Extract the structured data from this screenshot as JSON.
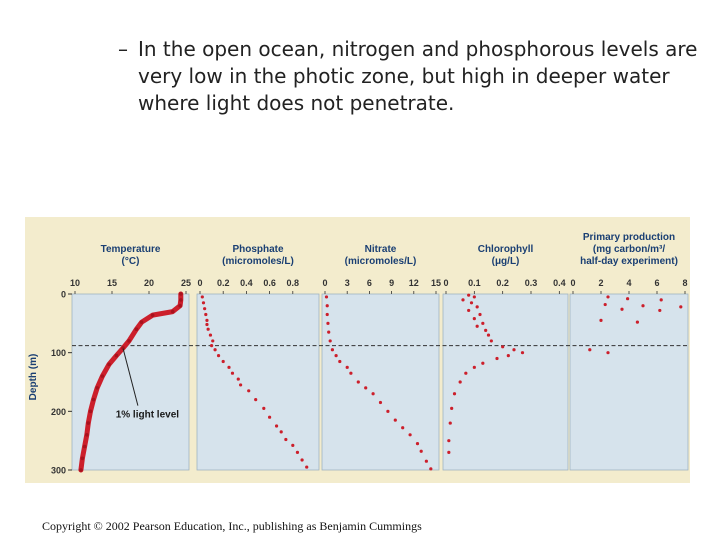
{
  "bullet": {
    "dash": "–",
    "text": "In the open ocean, nitrogen and phosphorous levels are very low in the photic zone, but high in deeper water where light does not penetrate."
  },
  "copyright": "Copyright © 2002 Pearson Education, Inc., publishing as Benjamin Cummings",
  "colors": {
    "figure_bg": "#f3eccd",
    "panel_bg": "#d6e3ec",
    "data_red": "#cc1f2b",
    "title_text": "#1a3f73"
  },
  "chart_data": {
    "type": "scatter",
    "shared_y": {
      "label": "Depth (m)",
      "ticks": [
        0,
        100,
        200,
        300
      ],
      "ylim": [
        300,
        0
      ],
      "reference_line": {
        "depth": 88,
        "label": "1% light level",
        "style": "dashed"
      }
    },
    "panels": [
      {
        "title": [
          "Temperature",
          "(°C)"
        ],
        "ticks": [
          "10",
          "15",
          "20",
          "25"
        ],
        "xlim": [
          10,
          25
        ],
        "x_unit": "°C",
        "profile": [
          [
            24.3,
            0
          ],
          [
            24.3,
            10
          ],
          [
            24.2,
            20
          ],
          [
            23.2,
            30
          ],
          [
            20.5,
            36
          ],
          [
            19.0,
            48
          ],
          [
            18.3,
            60
          ],
          [
            17.3,
            80
          ],
          [
            16.5,
            92
          ],
          [
            15.6,
            105
          ],
          [
            14.6,
            120
          ],
          [
            13.7,
            140
          ],
          [
            13.0,
            160
          ],
          [
            12.5,
            180
          ],
          [
            12.1,
            200
          ],
          [
            11.8,
            220
          ],
          [
            11.6,
            240
          ],
          [
            11.3,
            260
          ],
          [
            11.0,
            280
          ],
          [
            10.8,
            300
          ]
        ]
      },
      {
        "title": [
          "Phosphate",
          "(micromoles/L)"
        ],
        "ticks": [
          "0",
          "0.2",
          "0.4",
          "0.6",
          "0.8"
        ],
        "xlim": [
          0,
          1.0
        ],
        "x_unit": "micromoles/L",
        "points": [
          [
            0.02,
            5
          ],
          [
            0.03,
            15
          ],
          [
            0.04,
            25
          ],
          [
            0.05,
            35
          ],
          [
            0.06,
            45
          ],
          [
            0.06,
            52
          ],
          [
            0.07,
            60
          ],
          [
            0.09,
            70
          ],
          [
            0.11,
            80
          ],
          [
            0.1,
            88
          ],
          [
            0.13,
            95
          ],
          [
            0.16,
            105
          ],
          [
            0.2,
            115
          ],
          [
            0.25,
            125
          ],
          [
            0.28,
            135
          ],
          [
            0.33,
            145
          ],
          [
            0.35,
            155
          ],
          [
            0.42,
            165
          ],
          [
            0.48,
            180
          ],
          [
            0.55,
            195
          ],
          [
            0.6,
            210
          ],
          [
            0.66,
            225
          ],
          [
            0.7,
            235
          ],
          [
            0.74,
            248
          ],
          [
            0.8,
            258
          ],
          [
            0.84,
            270
          ],
          [
            0.88,
            283
          ],
          [
            0.92,
            295
          ]
        ]
      },
      {
        "title": [
          "Nitrate",
          "(micromoles/L)"
        ],
        "ticks": [
          "0",
          "3",
          "6",
          "9",
          "12",
          "15"
        ],
        "xlim": [
          0,
          15
        ],
        "x_unit": "micromoles/L",
        "points": [
          [
            0.2,
            5
          ],
          [
            0.3,
            20
          ],
          [
            0.3,
            35
          ],
          [
            0.4,
            50
          ],
          [
            0.5,
            65
          ],
          [
            0.7,
            80
          ],
          [
            1.0,
            95
          ],
          [
            1.5,
            105
          ],
          [
            2.0,
            115
          ],
          [
            3.0,
            125
          ],
          [
            3.5,
            135
          ],
          [
            4.5,
            150
          ],
          [
            5.5,
            160
          ],
          [
            6.5,
            170
          ],
          [
            7.5,
            185
          ],
          [
            8.5,
            200
          ],
          [
            9.5,
            215
          ],
          [
            10.5,
            228
          ],
          [
            11.5,
            240
          ],
          [
            12.5,
            255
          ],
          [
            13.0,
            268
          ],
          [
            13.7,
            285
          ],
          [
            14.3,
            298
          ]
        ]
      },
      {
        "title": [
          "Chlorophyll",
          "(μg/L)"
        ],
        "ticks": [
          "0",
          "0.1",
          "0.2",
          "0.3",
          "0.4"
        ],
        "xlim": [
          0,
          0.42
        ],
        "x_unit": "μg/L",
        "points": [
          [
            0.08,
            2
          ],
          [
            0.1,
            5
          ],
          [
            0.06,
            10
          ],
          [
            0.09,
            15
          ],
          [
            0.11,
            22
          ],
          [
            0.08,
            28
          ],
          [
            0.12,
            35
          ],
          [
            0.1,
            42
          ],
          [
            0.13,
            50
          ],
          [
            0.11,
            55
          ],
          [
            0.14,
            62
          ],
          [
            0.15,
            70
          ],
          [
            0.16,
            80
          ],
          [
            0.2,
            90
          ],
          [
            0.24,
            95
          ],
          [
            0.27,
            100
          ],
          [
            0.22,
            105
          ],
          [
            0.18,
            110
          ],
          [
            0.13,
            118
          ],
          [
            0.1,
            125
          ],
          [
            0.07,
            135
          ],
          [
            0.05,
            150
          ],
          [
            0.03,
            170
          ],
          [
            0.02,
            195
          ],
          [
            0.015,
            220
          ],
          [
            0.01,
            250
          ],
          [
            0.01,
            270
          ]
        ]
      },
      {
        "title": [
          "Primary production",
          "(mg carbon/m³/",
          "half-day experiment)"
        ],
        "ticks": [
          "0",
          "2",
          "4",
          "6",
          "8"
        ],
        "xlim": [
          0,
          8
        ],
        "x_unit": "mg carbon/m³/half-day",
        "points": [
          [
            2.5,
            5
          ],
          [
            3.9,
            8
          ],
          [
            6.3,
            10
          ],
          [
            2.3,
            18
          ],
          [
            5.0,
            20
          ],
          [
            7.7,
            22
          ],
          [
            3.5,
            26
          ],
          [
            6.2,
            28
          ],
          [
            2.0,
            45
          ],
          [
            4.6,
            48
          ],
          [
            1.2,
            95
          ],
          [
            2.5,
            100
          ]
        ]
      }
    ]
  }
}
